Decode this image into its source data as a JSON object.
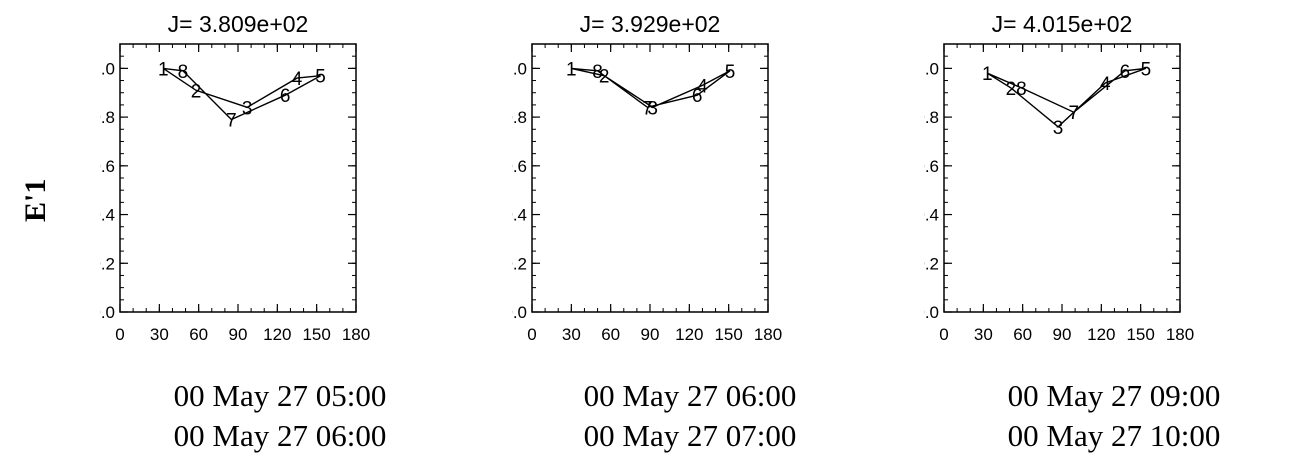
{
  "figure": {
    "ylabel": "E'1"
  },
  "chart_data": [
    {
      "type": "line",
      "title": "J= 3.809e+02",
      "xlim": [
        0,
        180
      ],
      "ylim": [
        0.0,
        1.1
      ],
      "xticks": [
        "0",
        "30",
        "60",
        "90",
        "120",
        "150",
        "180"
      ],
      "yticks": [
        "0.0",
        "0.2",
        "0.4",
        "0.6",
        "0.8",
        "1.0"
      ],
      "points": [
        {
          "label": "1",
          "x": 33,
          "y": 1.0
        },
        {
          "label": "2",
          "x": 58,
          "y": 0.91
        },
        {
          "label": "3",
          "x": 97,
          "y": 0.84
        },
        {
          "label": "4",
          "x": 135,
          "y": 0.96
        },
        {
          "label": "5",
          "x": 153,
          "y": 0.97
        },
        {
          "label": "6",
          "x": 126,
          "y": 0.89
        },
        {
          "label": "7",
          "x": 85,
          "y": 0.79
        },
        {
          "label": "8",
          "x": 48,
          "y": 0.99
        }
      ],
      "caption": [
        "00 May 27 05:00",
        "00 May 27 06:00"
      ]
    },
    {
      "type": "line",
      "title": "J= 3.929e+02",
      "xlim": [
        0,
        180
      ],
      "ylim": [
        0.0,
        1.1
      ],
      "xticks": [
        "0",
        "30",
        "60",
        "90",
        "120",
        "150",
        "180"
      ],
      "yticks": [
        "0.0",
        "0.2",
        "0.4",
        "0.6",
        "0.8",
        "1.0"
      ],
      "points": [
        {
          "label": "1",
          "x": 30,
          "y": 1.0
        },
        {
          "label": "2",
          "x": 55,
          "y": 0.97
        },
        {
          "label": "3",
          "x": 92,
          "y": 0.84
        },
        {
          "label": "4",
          "x": 130,
          "y": 0.93
        },
        {
          "label": "5",
          "x": 151,
          "y": 0.99
        },
        {
          "label": "6",
          "x": 126,
          "y": 0.89
        },
        {
          "label": "7",
          "x": 88,
          "y": 0.84
        },
        {
          "label": "8",
          "x": 50,
          "y": 0.99
        }
      ],
      "caption": [
        "00 May 27 06:00",
        "00 May 27 07:00"
      ]
    },
    {
      "type": "line",
      "title": "J= 4.015e+02",
      "xlim": [
        0,
        180
      ],
      "ylim": [
        0.0,
        1.1
      ],
      "xticks": [
        "0",
        "30",
        "60",
        "90",
        "120",
        "150",
        "180"
      ],
      "yticks": [
        "0.0",
        "0.2",
        "0.4",
        "0.6",
        "0.8",
        "1.0"
      ],
      "points": [
        {
          "label": "1",
          "x": 33,
          "y": 0.98
        },
        {
          "label": "2",
          "x": 51,
          "y": 0.92
        },
        {
          "label": "3",
          "x": 87,
          "y": 0.76
        },
        {
          "label": "4",
          "x": 123,
          "y": 0.94
        },
        {
          "label": "5",
          "x": 154,
          "y": 1.0
        },
        {
          "label": "6",
          "x": 138,
          "y": 0.99
        },
        {
          "label": "7",
          "x": 99,
          "y": 0.82
        },
        {
          "label": "8",
          "x": 59,
          "y": 0.92
        }
      ],
      "caption": [
        "00 May 27 09:00",
        "00 May 27 10:00"
      ]
    }
  ]
}
